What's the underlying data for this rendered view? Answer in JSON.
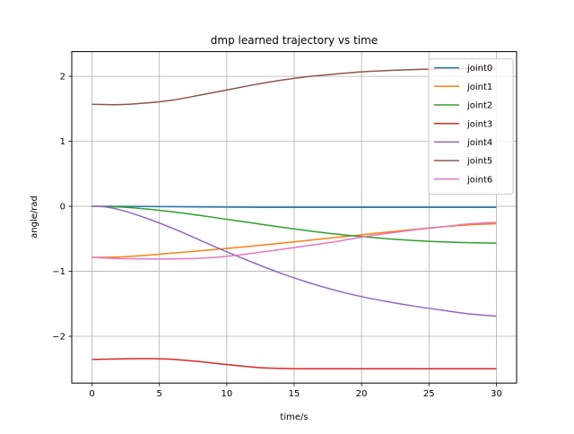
{
  "chart_data": {
    "type": "line",
    "title": "dmp learned trajectory vs time",
    "xlabel": "time/s",
    "ylabel": "angle/rad",
    "xlim": [
      -1.5,
      31.5
    ],
    "ylim": [
      -2.72,
      2.38
    ],
    "xticks": [
      0,
      5,
      10,
      15,
      20,
      25,
      30
    ],
    "yticks": [
      -2,
      -1,
      0,
      1,
      2
    ],
    "grid": true,
    "legend_position": "top-right",
    "series": [
      {
        "name": "joint0",
        "color": "#1f77b4",
        "x": [
          0,
          2,
          4,
          6,
          8,
          10,
          12,
          14,
          16,
          18,
          20,
          22,
          24,
          26,
          28,
          30
        ],
        "y": [
          0.0,
          0.0,
          -0.003,
          -0.006,
          -0.01,
          -0.013,
          -0.015,
          -0.016,
          -0.016,
          -0.016,
          -0.016,
          -0.016,
          -0.016,
          -0.016,
          -0.016,
          -0.016
        ]
      },
      {
        "name": "joint1",
        "color": "#ff7f0e",
        "x": [
          0,
          2,
          4,
          6,
          8,
          10,
          12,
          14,
          16,
          18,
          20,
          22,
          24,
          26,
          28,
          30
        ],
        "y": [
          -0.785,
          -0.78,
          -0.755,
          -0.72,
          -0.685,
          -0.648,
          -0.61,
          -0.568,
          -0.525,
          -0.48,
          -0.438,
          -0.395,
          -0.353,
          -0.315,
          -0.285,
          -0.268
        ]
      },
      {
        "name": "joint2",
        "color": "#2ca02c",
        "x": [
          0,
          2,
          4,
          6,
          8,
          10,
          12,
          14,
          16,
          18,
          20,
          22,
          24,
          26,
          28,
          30
        ],
        "y": [
          0.0,
          -0.01,
          -0.04,
          -0.085,
          -0.14,
          -0.2,
          -0.26,
          -0.32,
          -0.375,
          -0.425,
          -0.465,
          -0.5,
          -0.528,
          -0.548,
          -0.56,
          -0.566
        ]
      },
      {
        "name": "joint3",
        "color": "#d62728",
        "x": [
          0,
          2,
          4,
          6,
          8,
          10,
          12,
          14,
          16,
          18,
          20,
          22,
          24,
          26,
          28,
          30
        ],
        "y": [
          -2.356,
          -2.348,
          -2.343,
          -2.355,
          -2.39,
          -2.435,
          -2.475,
          -2.495,
          -2.5,
          -2.5,
          -2.5,
          -2.5,
          -2.5,
          -2.5,
          -2.5,
          -2.5
        ]
      },
      {
        "name": "joint4",
        "color": "#9467bd",
        "x": [
          0,
          1,
          2,
          4,
          6,
          8,
          10,
          12,
          14,
          16,
          18,
          20,
          22,
          24,
          26,
          28,
          30
        ],
        "y": [
          0.0,
          -0.01,
          -0.05,
          -0.18,
          -0.34,
          -0.52,
          -0.7,
          -0.87,
          -1.03,
          -1.17,
          -1.29,
          -1.39,
          -1.47,
          -1.54,
          -1.6,
          -1.655,
          -1.69
        ]
      },
      {
        "name": "joint5",
        "color": "#8c564b",
        "x": [
          0,
          2,
          4,
          6,
          8,
          10,
          12,
          14,
          16,
          18,
          20,
          22,
          24,
          26,
          28,
          30
        ],
        "y": [
          1.57,
          1.565,
          1.59,
          1.635,
          1.71,
          1.79,
          1.87,
          1.94,
          1.995,
          2.035,
          2.07,
          2.09,
          2.105,
          2.115,
          2.12,
          2.122
        ]
      },
      {
        "name": "joint6",
        "color": "#e377c2",
        "x": [
          0,
          2,
          4,
          6,
          8,
          10,
          12,
          14,
          16,
          18,
          20,
          22,
          24,
          26,
          28,
          30
        ],
        "y": [
          -0.785,
          -0.805,
          -0.81,
          -0.81,
          -0.8,
          -0.77,
          -0.72,
          -0.665,
          -0.605,
          -0.545,
          -0.475,
          -0.415,
          -0.36,
          -0.315,
          -0.27,
          -0.245
        ]
      }
    ]
  }
}
